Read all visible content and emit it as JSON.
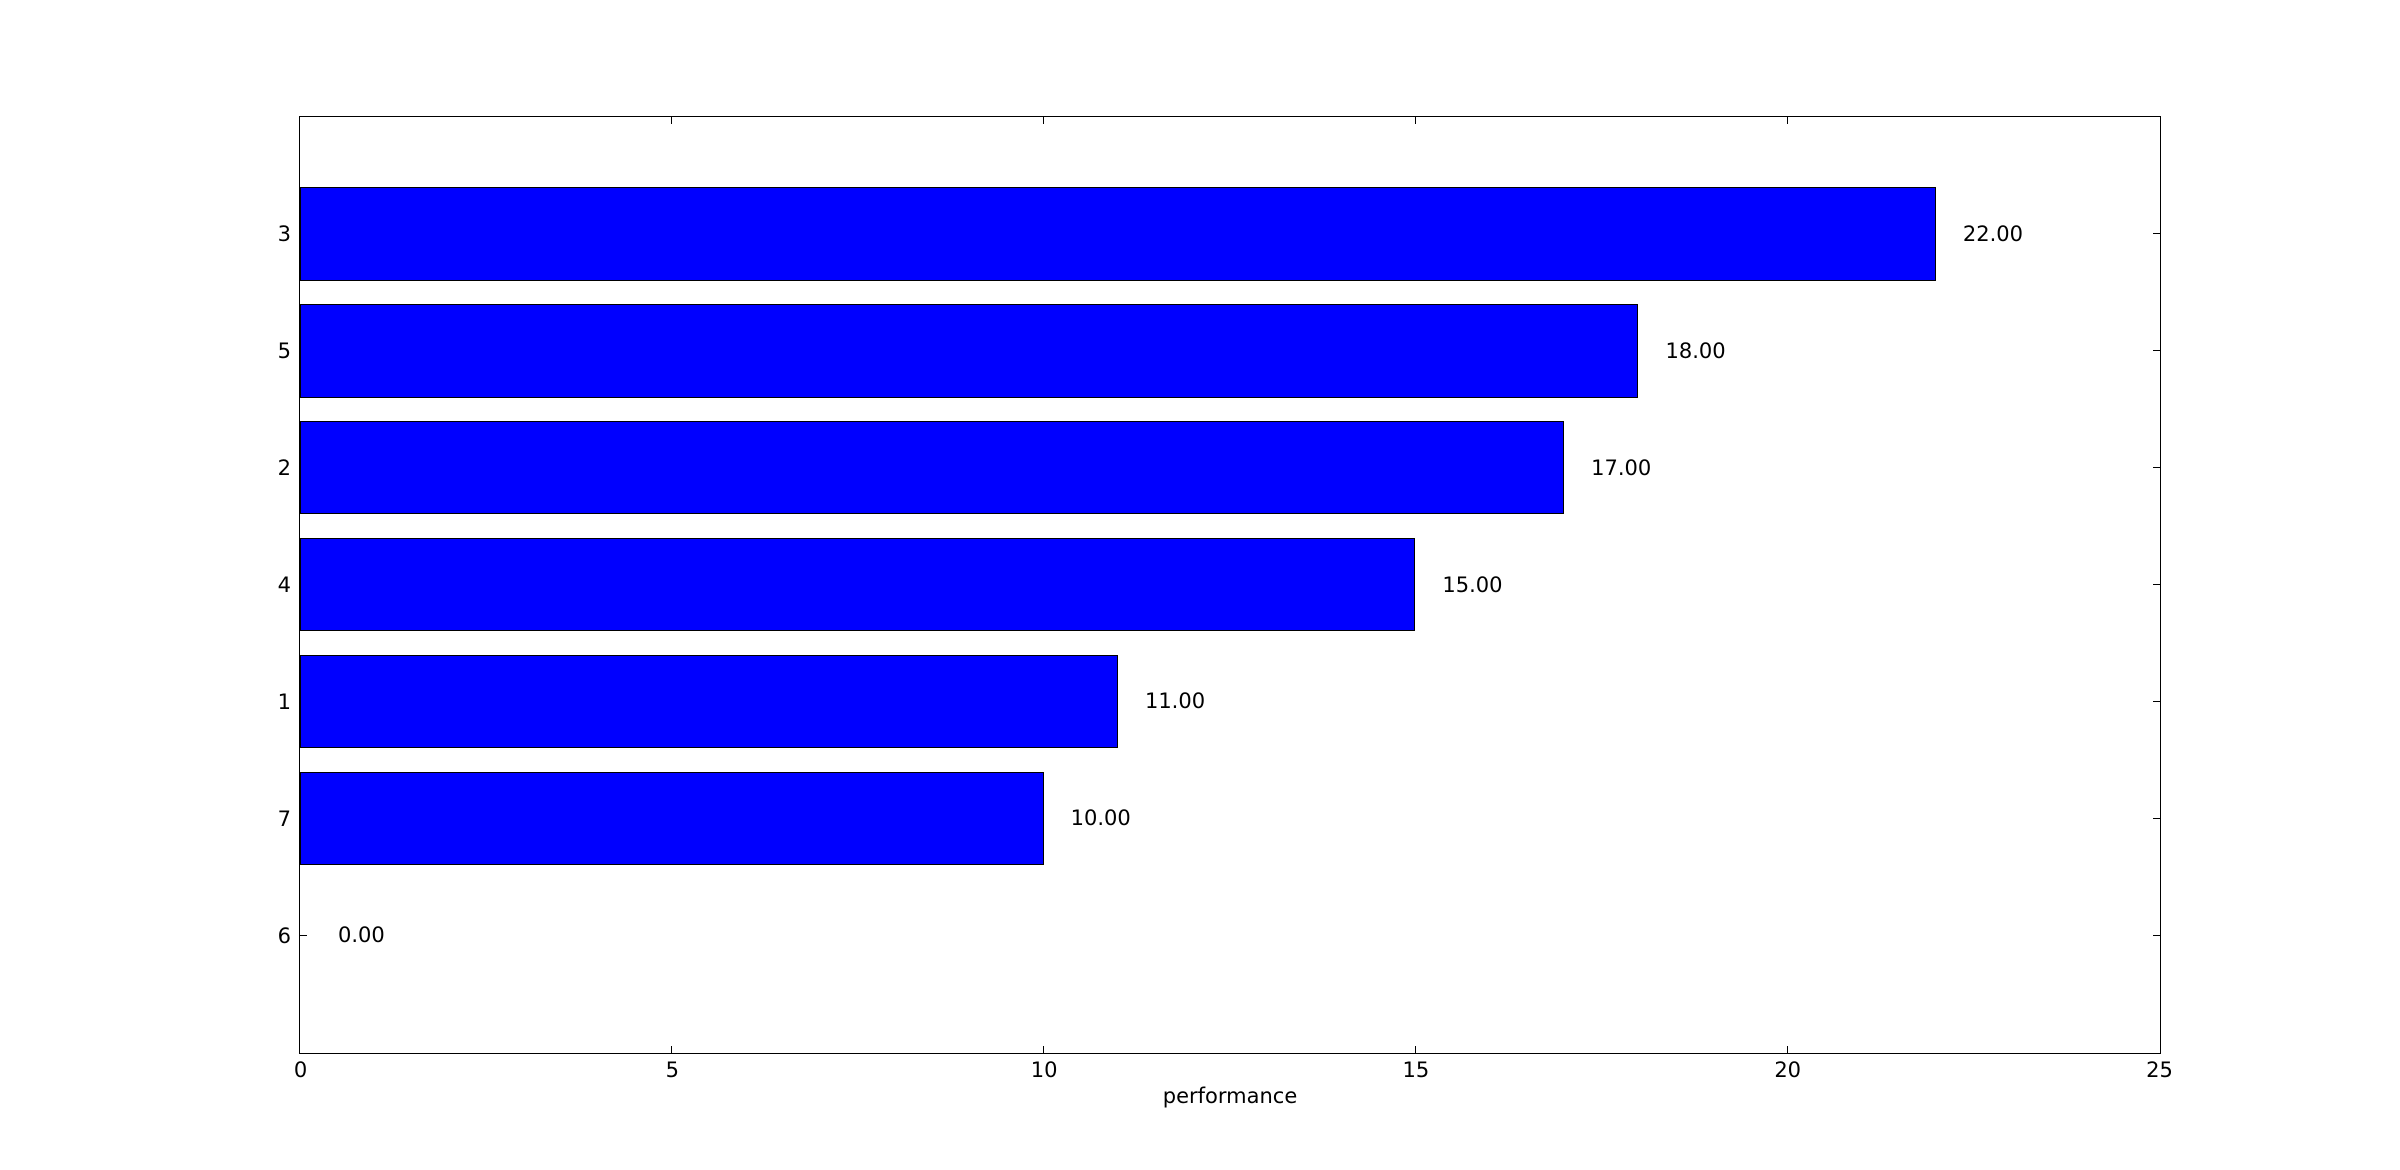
{
  "chart_data": {
    "type": "bar",
    "orientation": "horizontal",
    "title": "",
    "xlabel": "performance",
    "ylabel": "",
    "categories": [
      "3",
      "5",
      "2",
      "4",
      "1",
      "7",
      "6"
    ],
    "values": [
      22,
      18,
      17,
      15,
      11,
      10,
      0
    ],
    "bar_value_labels": [
      "22.00",
      "18.00",
      "17.00",
      "15.00",
      "11.00",
      "10.00",
      "0.00"
    ],
    "x_ticks": [
      0,
      5,
      10,
      15,
      20,
      25
    ],
    "x_tick_labels": [
      "0",
      "5",
      "10",
      "15",
      "20",
      "25"
    ],
    "xlim": [
      0,
      25
    ],
    "ylim": [
      -1,
      7
    ],
    "bar_height_frac": 0.8,
    "grid": false,
    "legend": null,
    "colors": {
      "bar_fill": "#0000ff",
      "bar_edge": "#000000",
      "spine": "#000000",
      "text": "#000000",
      "background": "#ffffff"
    }
  }
}
